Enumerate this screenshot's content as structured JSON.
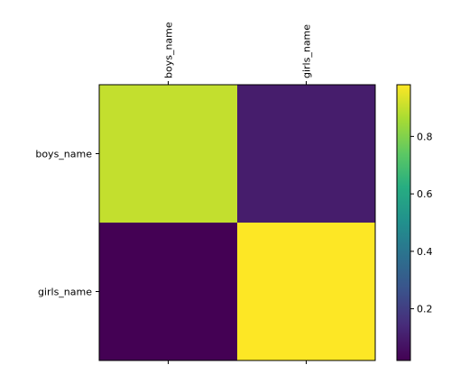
{
  "chart_data": {
    "type": "heatmap",
    "x_labels": [
      "boys_name",
      "girls_name"
    ],
    "y_labels": [
      "boys_name",
      "girls_name"
    ],
    "values": [
      [
        0.9,
        0.1
      ],
      [
        0.02,
        0.98
      ]
    ],
    "vmin": 0.02,
    "vmax": 0.98,
    "colormap": "viridis",
    "colorbar_ticks": [
      "0.2",
      "0.4",
      "0.6",
      "0.8"
    ],
    "colorbar_tick_values": [
      0.2,
      0.4,
      0.6,
      0.8
    ]
  }
}
